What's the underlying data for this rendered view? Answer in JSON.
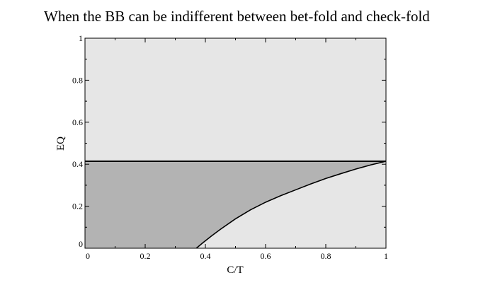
{
  "chart_data": {
    "type": "area",
    "title": "When the BB can be indifferent between bet-fold and check-fold",
    "xlabel": "C/T",
    "ylabel": "EQ",
    "xlim": [
      0,
      1
    ],
    "ylim": [
      0,
      1
    ],
    "x_ticks": [
      {
        "value": 0,
        "label": "0"
      },
      {
        "value": 0.2,
        "label": "0.2"
      },
      {
        "value": 0.4,
        "label": "0.4"
      },
      {
        "value": 0.6,
        "label": "0.6"
      },
      {
        "value": 0.8,
        "label": "0.8"
      },
      {
        "value": 1,
        "label": "1"
      }
    ],
    "y_ticks": [
      {
        "value": 0,
        "label": "0"
      },
      {
        "value": 0.2,
        "label": "0.2"
      },
      {
        "value": 0.4,
        "label": "0.4"
      },
      {
        "value": 0.6,
        "label": "0.6"
      },
      {
        "value": 0.8,
        "label": "0.8"
      },
      {
        "value": 1,
        "label": "1"
      }
    ],
    "grid": false,
    "background_color": "#e6e6e6",
    "series": [
      {
        "kind": "horizontal_line",
        "y": 0.414,
        "x": [
          0,
          1
        ],
        "color": "#000000"
      },
      {
        "kind": "curve",
        "color": "#000000",
        "x": [
          0.37,
          0.39,
          0.42,
          0.45,
          0.5,
          0.55,
          0.6,
          0.65,
          0.7,
          0.75,
          0.8,
          0.85,
          0.9,
          0.95,
          1.0
        ],
        "y": [
          0.0,
          0.024,
          0.058,
          0.09,
          0.14,
          0.183,
          0.219,
          0.25,
          0.278,
          0.306,
          0.332,
          0.355,
          0.377,
          0.397,
          0.414
        ]
      }
    ],
    "shaded_region": {
      "color": "#b3b3b3",
      "description_bounds": "between y=0 and horizontal line y=0.414, left of the curve"
    }
  }
}
